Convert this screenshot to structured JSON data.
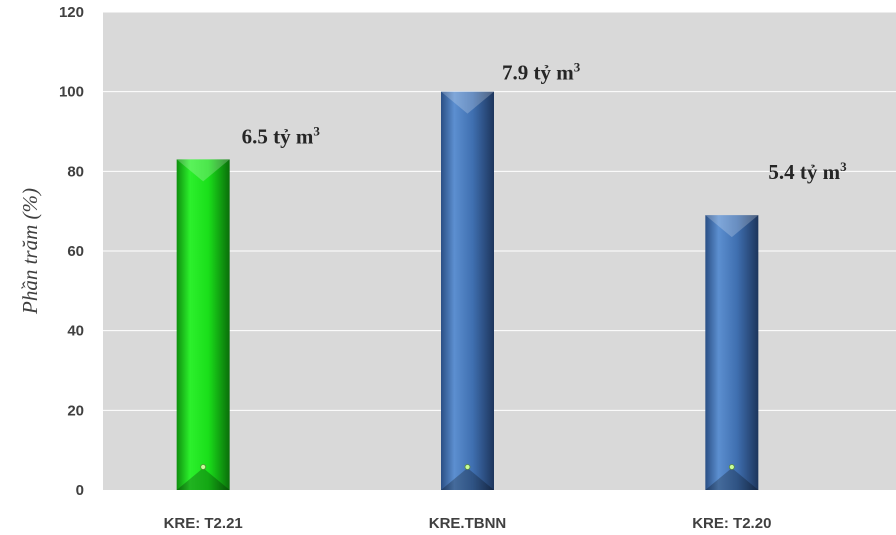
{
  "chart_data": {
    "type": "bar",
    "categories": [
      "KRE: T2.21",
      "KRE.TBNN",
      "KRE: T2.20"
    ],
    "values": [
      83,
      100,
      69
    ],
    "data_labels": [
      "6.5 tỷ m",
      "7.9 tỷ m",
      "5.4 tỷ m"
    ],
    "data_label_superscript": "3",
    "title": "",
    "xlabel": "",
    "ylabel": "Phần trăm (%)",
    "ylim": [
      0,
      120
    ],
    "yticks": [
      0,
      20,
      40,
      60,
      80,
      100,
      120
    ],
    "grid": true,
    "legend": "none",
    "colors": {
      "bar_1": "#1adf1a",
      "bar_2": "#3f6fb0",
      "bar_3": "#3f6fb0",
      "plot_background": "#d9d9d9",
      "gridline": "#ffffff"
    }
  }
}
